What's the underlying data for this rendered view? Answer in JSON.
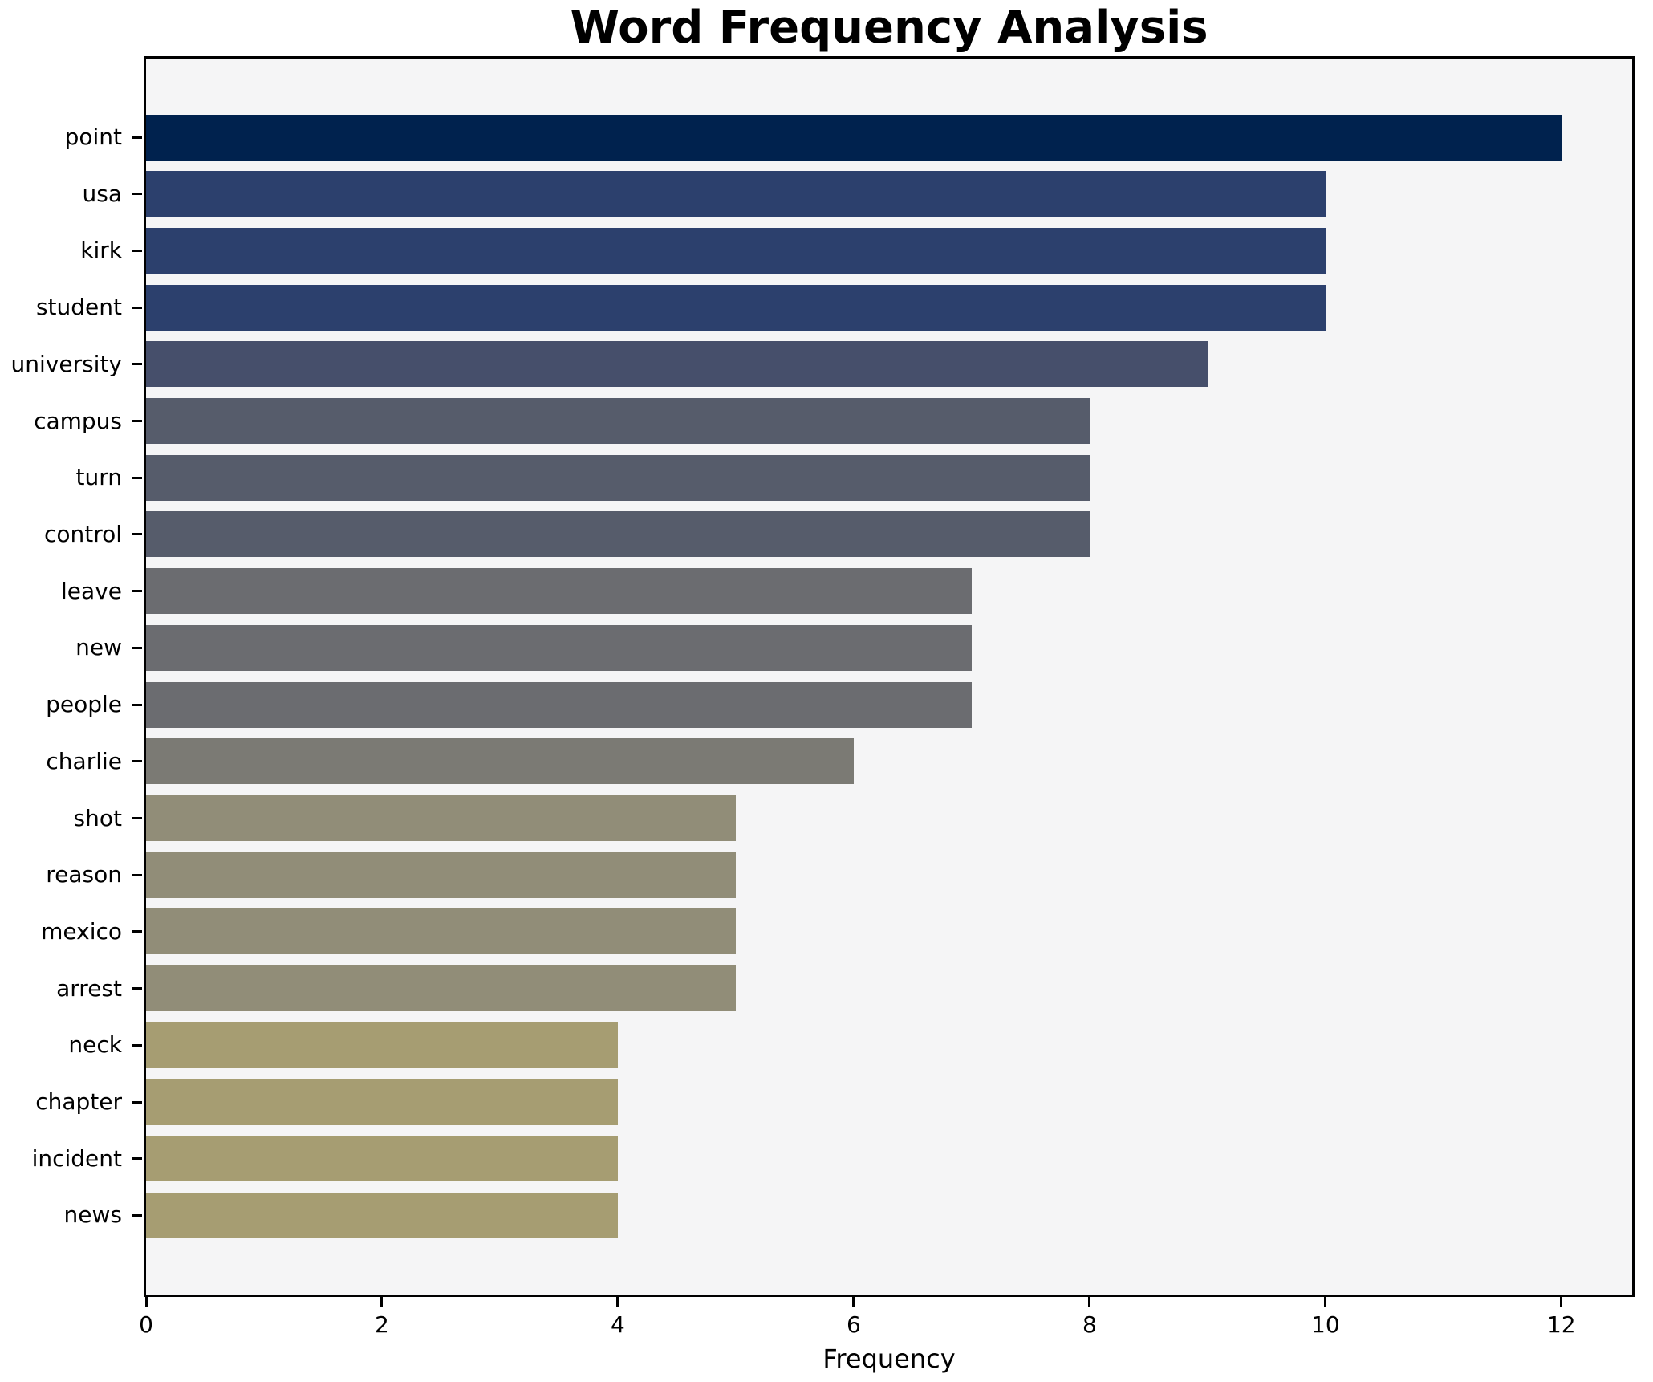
{
  "chart_data": {
    "type": "bar",
    "orientation": "horizontal",
    "title": "Word Frequency Analysis",
    "xlabel": "Frequency",
    "ylabel": "",
    "categories": [
      "point",
      "usa",
      "kirk",
      "student",
      "university",
      "campus",
      "turn",
      "control",
      "leave",
      "new",
      "people",
      "charlie",
      "shot",
      "reason",
      "mexico",
      "arrest",
      "neck",
      "chapter",
      "incident",
      "news"
    ],
    "values": [
      12,
      10,
      10,
      10,
      9,
      8,
      8,
      8,
      7,
      7,
      7,
      6,
      5,
      5,
      5,
      5,
      4,
      4,
      4,
      4
    ],
    "bar_colors": [
      "#00224e",
      "#2c406d",
      "#2c406d",
      "#2c406d",
      "#464f6b",
      "#565c6b",
      "#565c6b",
      "#565c6b",
      "#6b6c70",
      "#6b6c70",
      "#6b6c70",
      "#7b7a74",
      "#918d78",
      "#918d78",
      "#918d78",
      "#918d78",
      "#a69d72",
      "#a69d72",
      "#a69d72",
      "#a69d72"
    ],
    "xticks": [
      0,
      2,
      4,
      6,
      8,
      10,
      12
    ],
    "xlim": [
      0,
      12.6
    ],
    "grid": false,
    "legend": null,
    "plot_background": "#f5f5f6",
    "figure_background": "#ffffff",
    "spine_color": "#000000",
    "text_color": "#000000"
  }
}
